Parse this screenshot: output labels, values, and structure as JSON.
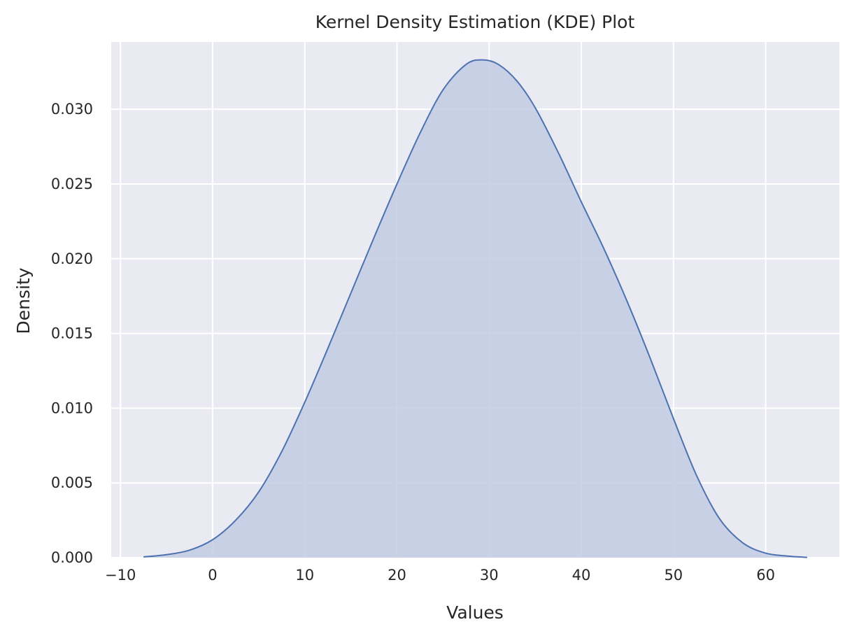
{
  "chart_data": {
    "type": "area",
    "title": "Kernel Density Estimation (KDE) Plot",
    "xlabel": "Values",
    "ylabel": "Density",
    "xlim": [
      -11,
      68
    ],
    "ylim": [
      0,
      0.0345
    ],
    "grid": true,
    "x_ticks": [
      -10,
      0,
      10,
      20,
      30,
      40,
      50,
      60
    ],
    "x_tick_labels": [
      "−10",
      "0",
      "10",
      "20",
      "30",
      "40",
      "50",
      "60"
    ],
    "y_ticks": [
      0,
      0.005,
      0.01,
      0.015,
      0.02,
      0.025,
      0.03
    ],
    "y_tick_labels": [
      "0.000",
      "0.005",
      "0.010",
      "0.015",
      "0.020",
      "0.025",
      "0.030"
    ],
    "series": [
      {
        "line_color": "#4c72b0",
        "fill_color": "#c2cbe3",
        "x": [
          -7.5,
          -5,
          -2.5,
          0,
          2.5,
          5,
          7.5,
          10,
          12.5,
          15,
          17.5,
          20,
          22.5,
          25,
          27.5,
          29.3,
          31,
          33,
          35,
          37.5,
          40,
          42.5,
          45,
          47.5,
          50,
          52.5,
          55,
          57.5,
          60,
          62.5,
          64.5
        ],
        "y": [
          5e-05,
          0.0002,
          0.0005,
          0.0012,
          0.0025,
          0.0044,
          0.0071,
          0.0104,
          0.014,
          0.0177,
          0.0214,
          0.025,
          0.0284,
          0.0313,
          0.033,
          0.0333,
          0.033,
          0.0319,
          0.0301,
          0.0271,
          0.0238,
          0.0206,
          0.0171,
          0.0133,
          0.0093,
          0.0055,
          0.0026,
          0.001,
          0.0003,
          0.0001,
          2e-05
        ]
      }
    ]
  }
}
